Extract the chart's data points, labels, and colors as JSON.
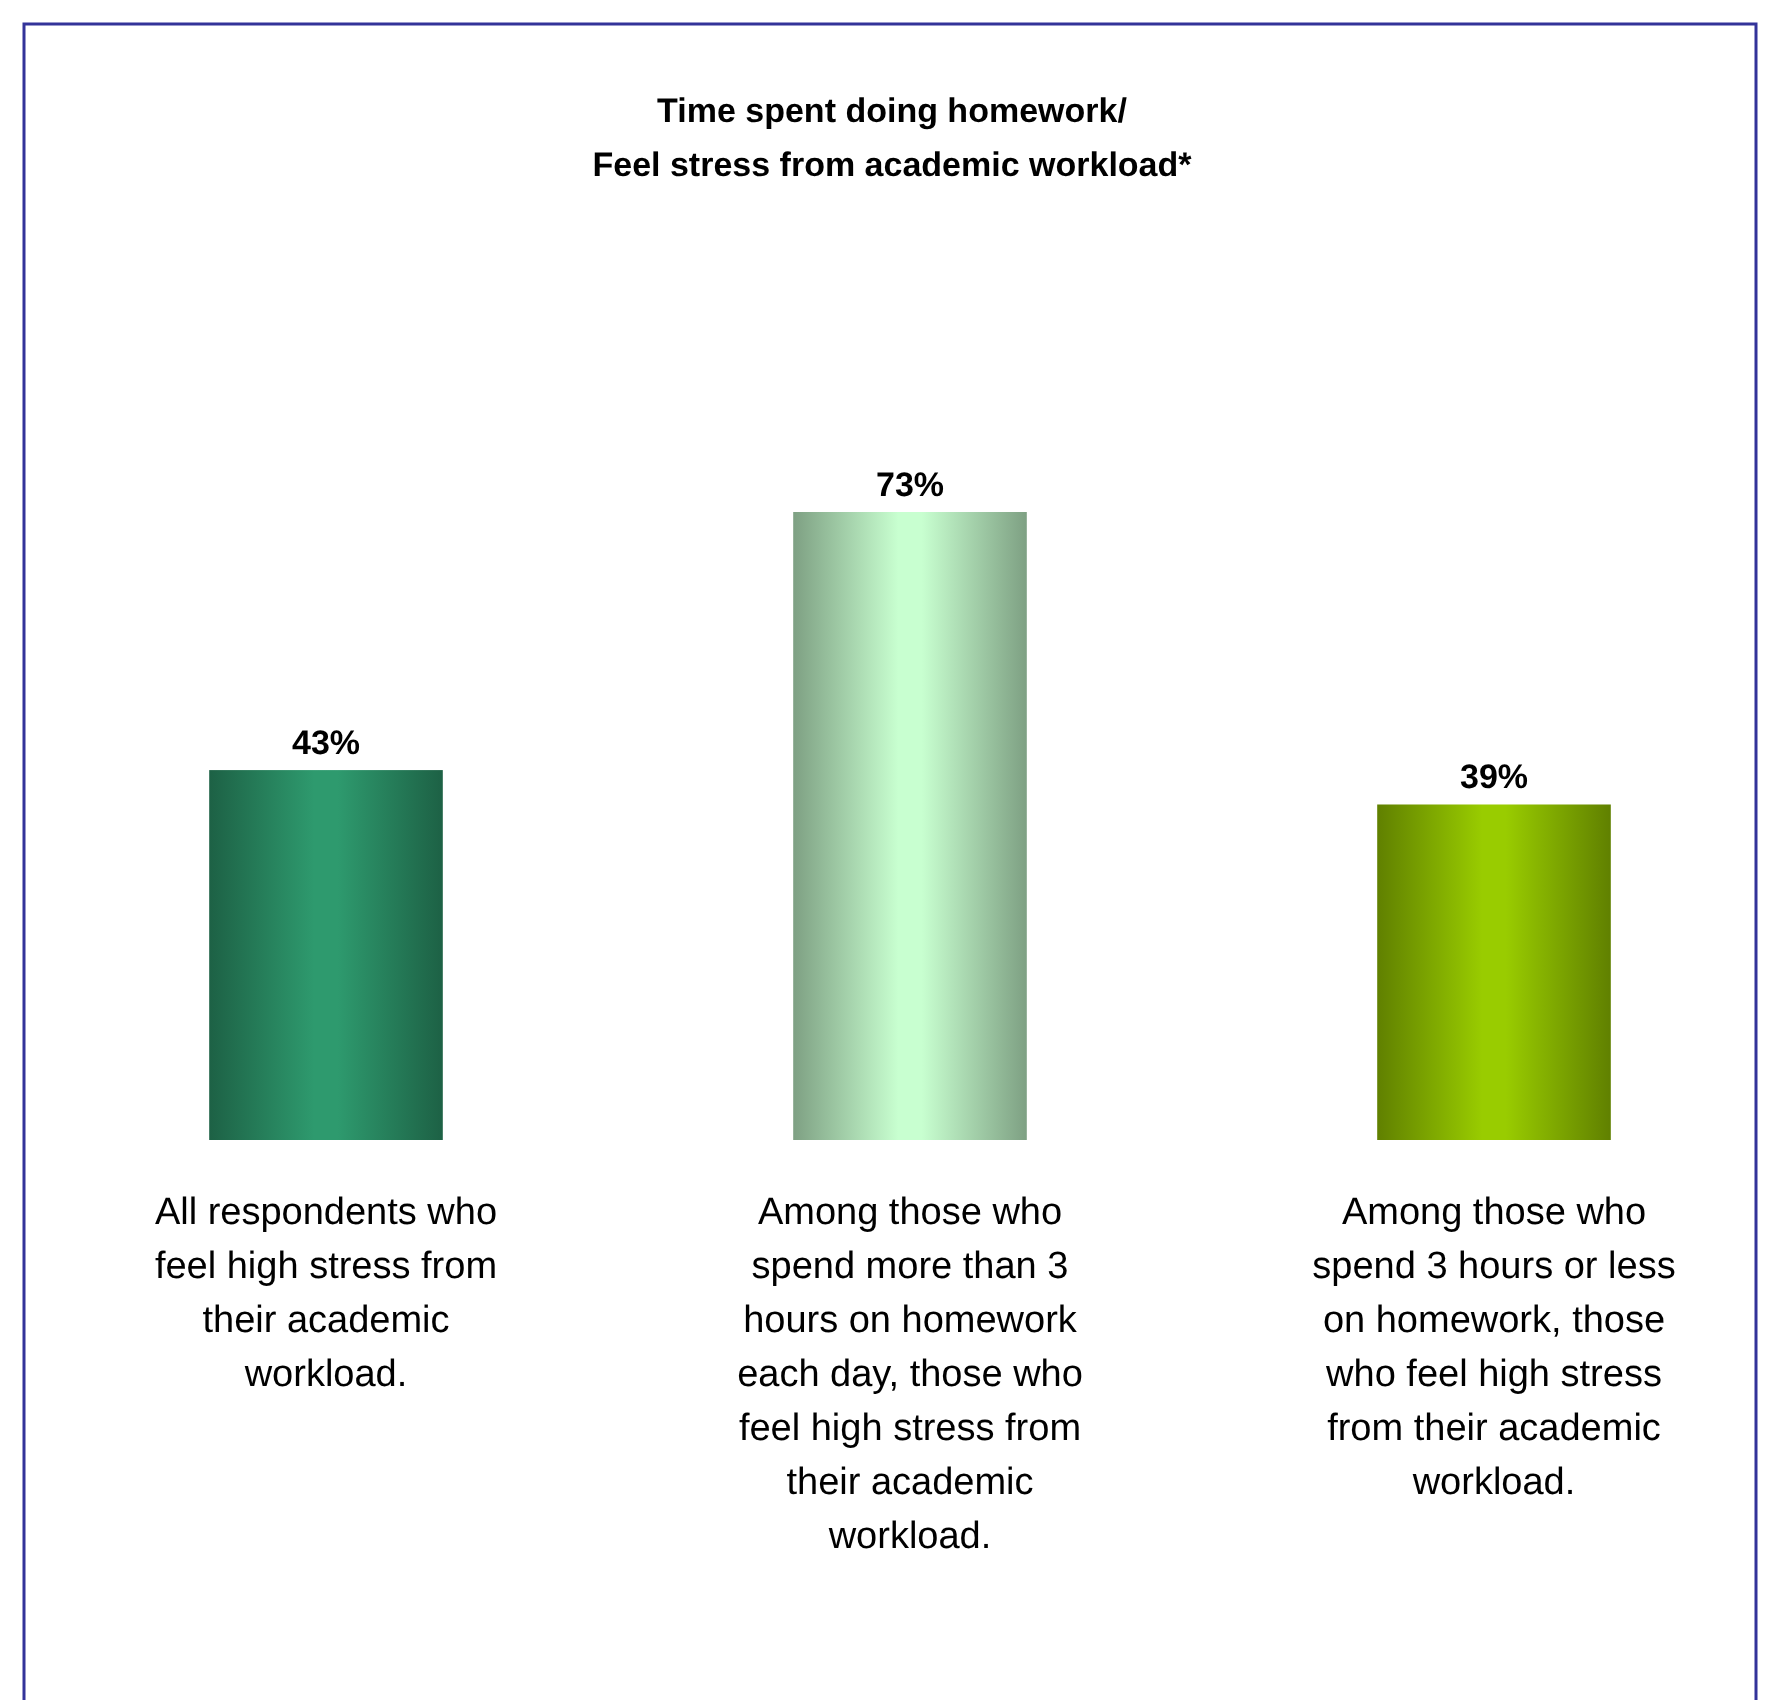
{
  "chart_data": {
    "type": "bar",
    "title": "Time spent doing homework/ Feel stress from academic workload*",
    "categories": [
      "All respondents who feel high stress from their academic workload.",
      "Among those who spend more than 3 hours on homework each day, those who feel high stress from their academic workload.",
      "Among those who spend 3 hours or less on homework, those who feel high stress from their academic workload."
    ],
    "values": [
      43,
      73,
      39
    ],
    "colors": [
      "#2e9a6e",
      "#c8ffd0",
      "#99cc00"
    ],
    "value_labels": [
      "43%",
      "73%",
      "39%"
    ]
  }
}
